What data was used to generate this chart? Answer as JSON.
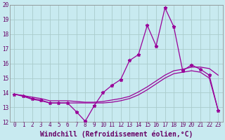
{
  "xlabel": "Windchill (Refroidissement éolien,°C)",
  "background_color": "#c8eaf0",
  "line_color": "#990099",
  "grid_color": "#aacccc",
  "spine_color": "#888888",
  "ylim": [
    12,
    20
  ],
  "xlim": [
    -0.5,
    23.5
  ],
  "yticks": [
    12,
    13,
    14,
    15,
    16,
    17,
    18,
    19,
    20
  ],
  "xticks": [
    0,
    1,
    2,
    3,
    4,
    5,
    6,
    7,
    8,
    9,
    10,
    11,
    12,
    13,
    14,
    15,
    16,
    17,
    18,
    19,
    20,
    21,
    22,
    23
  ],
  "line1_x": [
    0,
    1,
    2,
    3,
    4,
    5,
    6,
    7,
    8,
    9,
    10,
    11,
    12,
    13,
    14,
    15,
    16,
    17,
    18,
    19,
    20,
    21,
    22,
    23
  ],
  "line1_y": [
    13.9,
    13.8,
    13.6,
    13.5,
    13.3,
    13.3,
    13.3,
    12.7,
    12.05,
    13.1,
    14.0,
    14.5,
    14.9,
    16.2,
    16.6,
    18.6,
    17.2,
    19.8,
    18.5,
    15.5,
    15.9,
    15.6,
    15.2,
    12.8
  ],
  "line2_x": [
    0,
    1,
    2,
    3,
    4,
    5,
    6,
    7,
    8,
    9,
    10,
    11,
    12,
    13,
    14,
    15,
    16,
    17,
    18,
    19,
    20,
    21,
    22,
    23
  ],
  "line2_y": [
    13.9,
    13.8,
    13.7,
    13.6,
    13.45,
    13.45,
    13.45,
    13.4,
    13.35,
    13.35,
    13.4,
    13.5,
    13.6,
    13.75,
    14.05,
    14.4,
    14.8,
    15.2,
    15.5,
    15.6,
    15.75,
    15.75,
    15.65,
    15.2
  ],
  "line3_x": [
    0,
    1,
    2,
    3,
    4,
    5,
    6,
    7,
    8,
    9,
    10,
    11,
    12,
    13,
    14,
    15,
    16,
    17,
    18,
    19,
    20,
    21,
    22,
    23
  ],
  "line3_y": [
    13.9,
    13.75,
    13.55,
    13.45,
    13.3,
    13.3,
    13.3,
    13.3,
    13.3,
    13.3,
    13.3,
    13.35,
    13.45,
    13.6,
    13.85,
    14.2,
    14.6,
    15.0,
    15.3,
    15.4,
    15.5,
    15.4,
    15.0,
    12.8
  ],
  "marker_style": "*",
  "marker_size": 3.5,
  "linewidth": 0.9,
  "font_color": "#660066",
  "tick_labelsize": 5.5,
  "xlabel_fontsize": 7.0
}
